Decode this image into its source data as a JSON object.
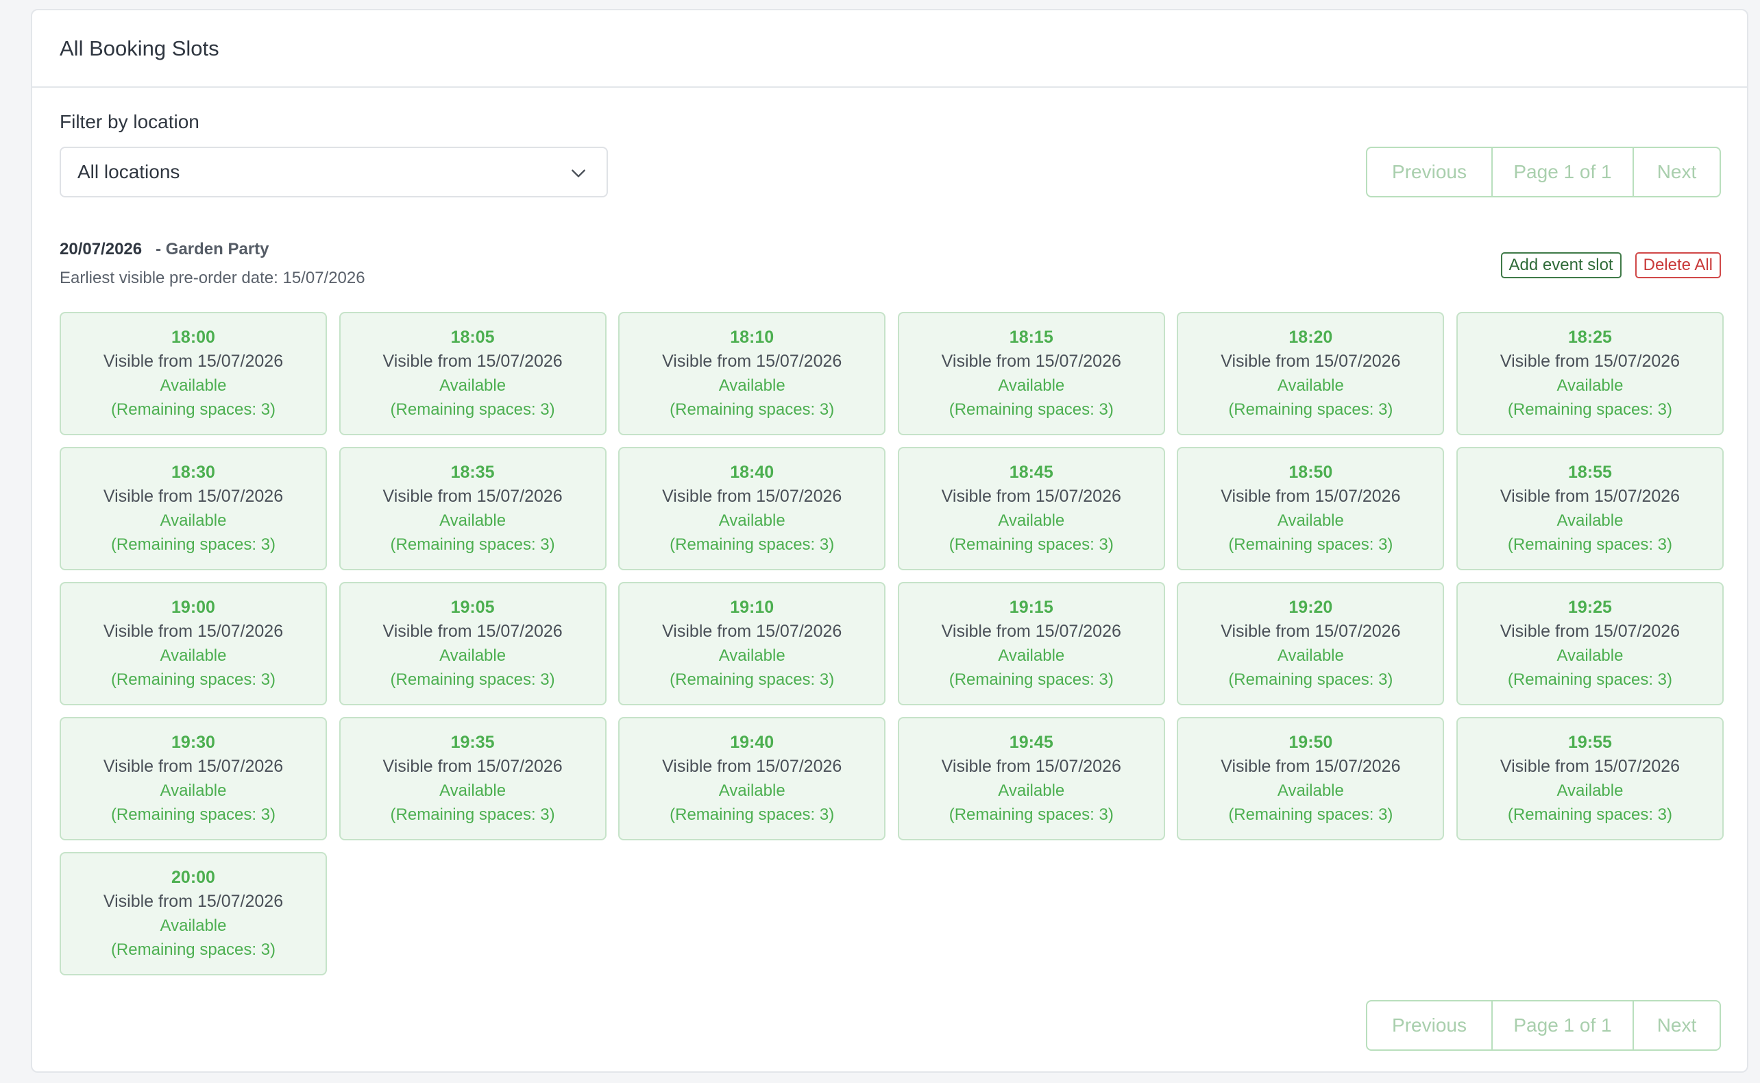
{
  "header": {
    "title": "All Booking Slots"
  },
  "filter": {
    "label": "Filter by location",
    "selected": "All locations"
  },
  "pagination": {
    "previous": "Previous",
    "page_info": "Page 1 of 1",
    "next": "Next"
  },
  "event": {
    "date": "20/07/2026",
    "name": "- Garden Party",
    "earliest_text": "Earliest visible pre-order date: 15/07/2026",
    "add_label": "Add event slot",
    "delete_label": "Delete All"
  },
  "slot_common": {
    "visible": "Visible from 15/07/2026",
    "status": "Available",
    "remaining": "(Remaining spaces: 3)"
  },
  "slots": [
    "18:00",
    "18:05",
    "18:10",
    "18:15",
    "18:20",
    "18:25",
    "18:30",
    "18:35",
    "18:40",
    "18:45",
    "18:50",
    "18:55",
    "19:00",
    "19:05",
    "19:10",
    "19:15",
    "19:20",
    "19:25",
    "19:30",
    "19:35",
    "19:40",
    "19:45",
    "19:50",
    "19:55",
    "20:00"
  ],
  "colors": {
    "accent_green": "#4caf50",
    "slot_background": "#eef7ef",
    "danger": "#c93a3a"
  }
}
